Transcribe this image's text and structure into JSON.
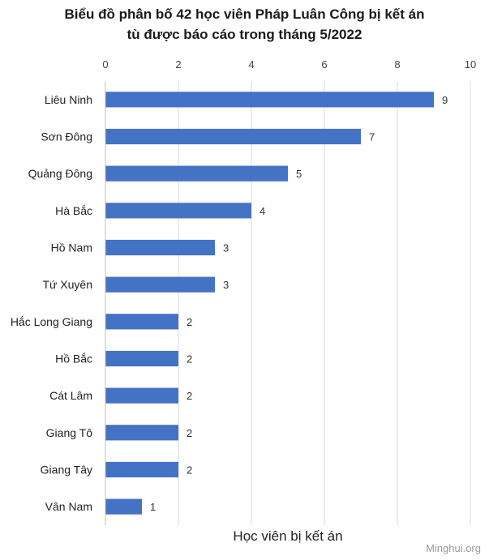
{
  "chart_data": {
    "type": "bar",
    "orientation": "horizontal",
    "title_lines": [
      "Biểu đồ phân bố 42 học viên Pháp Luân Công bị kết án",
      "tù được báo cáo trong tháng 5/2022"
    ],
    "xlabel": "Học viên bị kết án",
    "ylabel": "",
    "xlim": [
      0,
      10
    ],
    "x_ticks": [
      0,
      2,
      4,
      6,
      8,
      10
    ],
    "x_axis_position": "top",
    "grid": true,
    "legend": "none",
    "bar_color": "#4472C4",
    "categories": [
      "Liêu Ninh",
      "Sơn Đông",
      "Quảng Đông",
      "Hà Bắc",
      "Hồ Nam",
      "Tứ Xuyên",
      "Hắc Long Giang",
      "Hồ Bắc",
      "Cát Lâm",
      "Giang Tô",
      "Giang Tây",
      "Vân Nam"
    ],
    "values": [
      9,
      7,
      5,
      4,
      3,
      3,
      2,
      2,
      2,
      2,
      2,
      1
    ]
  },
  "watermark": "Minghui.org"
}
